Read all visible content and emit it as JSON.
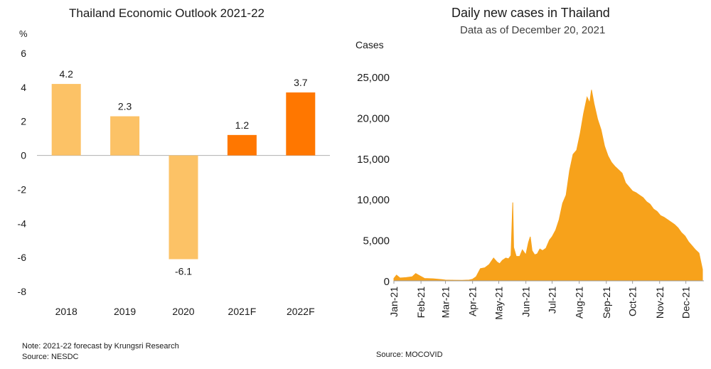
{
  "chart_data": [
    {
      "type": "bar",
      "title": "Thailand Economic Outlook 2021-22",
      "ylabel": "%",
      "categories": [
        "2018",
        "2019",
        "2020",
        "2021F",
        "2022F"
      ],
      "values": [
        4.2,
        2.3,
        -6.1,
        1.2,
        3.7
      ],
      "data_labels": [
        "4.2",
        "2.3",
        "-6.1",
        "1.2",
        "3.7"
      ],
      "ylim": [
        -8,
        6
      ],
      "yticks": [
        "6",
        "4",
        "2",
        "0",
        "-2",
        "-4",
        "-6",
        "-8"
      ],
      "colors": [
        "#fcc266",
        "#fcc266",
        "#fcc266",
        "#ff7700",
        "#ff7700"
      ],
      "grid": false,
      "note": "Note: 2021-22 forecast by Krungsri Research",
      "source": "Source: NESDC"
    },
    {
      "type": "area",
      "title": "Daily new cases in Thailand",
      "subtitle": "Data as of December 20, 2021",
      "ylabel": "Cases",
      "ylim": [
        0,
        25000
      ],
      "yticks": [
        "25,000",
        "20,000",
        "15,000",
        "10,000",
        "5,000",
        "0"
      ],
      "xticks": [
        "Jan-21",
        "Feb-21",
        "Mar-21",
        "Apr-21",
        "May-21",
        "Jun-21",
        "Jul-21",
        "Aug-21",
        "Sep-21",
        "Oct-21",
        "Nov-21",
        "Dec-21"
      ],
      "x_range": [
        "2021-01-01",
        "2021-12-20"
      ],
      "color": "#f7a21b",
      "grid": false,
      "source": "Source: MOCOVID",
      "x": [
        "2021-01-01",
        "2021-01-04",
        "2021-01-08",
        "2021-01-15",
        "2021-01-22",
        "2021-01-26",
        "2021-01-30",
        "2021-02-05",
        "2021-02-15",
        "2021-02-25",
        "2021-03-01",
        "2021-03-10",
        "2021-03-20",
        "2021-03-28",
        "2021-04-01",
        "2021-04-05",
        "2021-04-10",
        "2021-04-15",
        "2021-04-20",
        "2021-04-25",
        "2021-04-29",
        "2021-05-02",
        "2021-05-05",
        "2021-05-09",
        "2021-05-12",
        "2021-05-15",
        "2021-05-17",
        "2021-05-18",
        "2021-05-21",
        "2021-05-25",
        "2021-05-28",
        "2021-06-01",
        "2021-06-04",
        "2021-06-06",
        "2021-06-08",
        "2021-06-11",
        "2021-06-14",
        "2021-06-17",
        "2021-06-20",
        "2021-06-24",
        "2021-06-28",
        "2021-07-01",
        "2021-07-05",
        "2021-07-09",
        "2021-07-13",
        "2021-07-17",
        "2021-07-21",
        "2021-07-25",
        "2021-07-29",
        "2021-08-02",
        "2021-08-06",
        "2021-08-10",
        "2021-08-13",
        "2021-08-15",
        "2021-08-18",
        "2021-08-22",
        "2021-08-26",
        "2021-08-30",
        "2021-09-03",
        "2021-09-07",
        "2021-09-11",
        "2021-09-15",
        "2021-09-19",
        "2021-09-23",
        "2021-09-27",
        "2021-10-01",
        "2021-10-05",
        "2021-10-09",
        "2021-10-13",
        "2021-10-17",
        "2021-10-21",
        "2021-10-25",
        "2021-10-29",
        "2021-11-02",
        "2021-11-06",
        "2021-11-10",
        "2021-11-14",
        "2021-11-18",
        "2021-11-22",
        "2021-11-26",
        "2021-11-30",
        "2021-12-04",
        "2021-12-08",
        "2021-12-12",
        "2021-12-16",
        "2021-12-20"
      ],
      "values": [
        300,
        700,
        350,
        400,
        500,
        900,
        650,
        300,
        250,
        150,
        100,
        80,
        70,
        100,
        200,
        500,
        1500,
        1600,
        2000,
        2800,
        2300,
        2100,
        2500,
        2800,
        2700,
        3100,
        9600,
        4100,
        3000,
        3000,
        3800,
        3200,
        4700,
        5400,
        3700,
        3200,
        3300,
        3900,
        3700,
        4000,
        5000,
        5400,
        6200,
        7500,
        9500,
        10500,
        13500,
        15500,
        16000,
        18000,
        20500,
        22500,
        21800,
        23400,
        21700,
        19800,
        18500,
        16500,
        15300,
        14500,
        14000,
        13600,
        13200,
        12000,
        11500,
        11000,
        10800,
        10500,
        10200,
        9700,
        9400,
        8800,
        8500,
        8000,
        7800,
        7500,
        7200,
        6900,
        6500,
        5900,
        5500,
        4800,
        4300,
        3800,
        3400,
        1400
      ]
    }
  ]
}
